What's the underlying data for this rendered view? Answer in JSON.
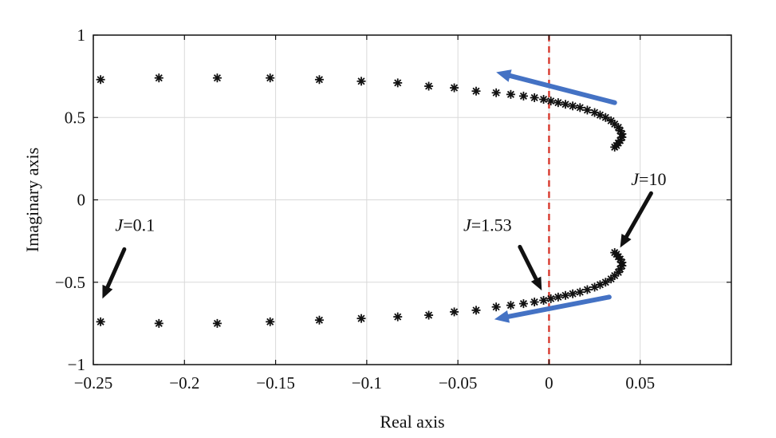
{
  "chart_data": {
    "type": "scatter",
    "title": "",
    "xlabel": "Real axis",
    "ylabel": "Imaginary axis",
    "xlim": [
      -0.25,
      0.1
    ],
    "ylim": [
      -1,
      1
    ],
    "x_ticks": [
      -0.25,
      -0.2,
      -0.15,
      -0.1,
      -0.05,
      0,
      0.05
    ],
    "x_tick_labels": [
      "−0.25",
      "−0.2",
      "−0.15",
      "−0.1",
      "−0.05",
      "0",
      "0.05"
    ],
    "y_ticks": [
      1,
      0.5,
      0,
      -0.5,
      -1
    ],
    "y_tick_labels": [
      "1",
      "0.5",
      "0",
      "−0.5",
      "−1"
    ],
    "grid": true,
    "marker": "*",
    "series": [
      {
        "values": [
          [
            -0.246,
            0.73
          ],
          [
            -0.214,
            0.74
          ],
          [
            -0.182,
            0.74
          ],
          [
            -0.153,
            0.74
          ],
          [
            -0.126,
            0.73
          ],
          [
            -0.103,
            0.72
          ],
          [
            -0.083,
            0.71
          ],
          [
            -0.066,
            0.69
          ],
          [
            -0.052,
            0.68
          ],
          [
            -0.04,
            0.66
          ],
          [
            -0.029,
            0.65
          ],
          [
            -0.021,
            0.64
          ],
          [
            -0.014,
            0.63
          ],
          [
            -0.008,
            0.62
          ],
          [
            -0.003,
            0.61
          ],
          [
            0.001,
            0.6
          ],
          [
            0.005,
            0.59
          ],
          [
            0.009,
            0.58
          ],
          [
            0.013,
            0.57
          ],
          [
            0.017,
            0.56
          ],
          [
            0.021,
            0.545
          ],
          [
            0.025,
            0.53
          ],
          [
            0.028,
            0.515
          ],
          [
            0.031,
            0.5
          ],
          [
            0.034,
            0.48
          ],
          [
            0.036,
            0.46
          ],
          [
            0.038,
            0.44
          ],
          [
            0.039,
            0.42
          ],
          [
            0.04,
            0.4
          ],
          [
            0.04,
            0.38
          ],
          [
            0.039,
            0.36
          ],
          [
            0.038,
            0.345
          ],
          [
            0.037,
            0.33
          ],
          [
            0.036,
            0.32
          ]
        ]
      },
      {
        "values": [
          [
            -0.246,
            -0.74
          ],
          [
            -0.214,
            -0.75
          ],
          [
            -0.182,
            -0.75
          ],
          [
            -0.153,
            -0.74
          ],
          [
            -0.126,
            -0.73
          ],
          [
            -0.103,
            -0.72
          ],
          [
            -0.083,
            -0.71
          ],
          [
            -0.066,
            -0.7
          ],
          [
            -0.052,
            -0.68
          ],
          [
            -0.04,
            -0.67
          ],
          [
            -0.029,
            -0.65
          ],
          [
            -0.021,
            -0.64
          ],
          [
            -0.014,
            -0.63
          ],
          [
            -0.008,
            -0.62
          ],
          [
            -0.003,
            -0.61
          ],
          [
            0.001,
            -0.6
          ],
          [
            0.005,
            -0.59
          ],
          [
            0.009,
            -0.58
          ],
          [
            0.013,
            -0.57
          ],
          [
            0.017,
            -0.56
          ],
          [
            0.021,
            -0.545
          ],
          [
            0.025,
            -0.53
          ],
          [
            0.028,
            -0.515
          ],
          [
            0.031,
            -0.5
          ],
          [
            0.034,
            -0.48
          ],
          [
            0.036,
            -0.46
          ],
          [
            0.038,
            -0.44
          ],
          [
            0.039,
            -0.42
          ],
          [
            0.04,
            -0.4
          ],
          [
            0.04,
            -0.38
          ],
          [
            0.039,
            -0.36
          ],
          [
            0.038,
            -0.345
          ],
          [
            0.037,
            -0.33
          ],
          [
            0.036,
            -0.32
          ]
        ]
      }
    ],
    "reference_line": {
      "x": 0,
      "style": "dashed",
      "color": "#d83a2e"
    },
    "direction_arrows": [
      {
        "from": [
          0.036,
          0.59
        ],
        "to": [
          -0.029,
          0.775
        ],
        "color": "#4472c4"
      },
      {
        "from": [
          0.033,
          -0.59
        ],
        "to": [
          -0.03,
          -0.725
        ],
        "color": "#4472c4"
      }
    ],
    "annotations": [
      {
        "var": "J",
        "value": "=0.1",
        "label_at": [
          -0.238,
          -0.19
        ],
        "from": [
          -0.233,
          -0.3
        ],
        "to": [
          -0.245,
          -0.6
        ]
      },
      {
        "var": "J",
        "value": "=1.53",
        "label_at": [
          -0.047,
          -0.19
        ],
        "from": [
          -0.016,
          -0.285
        ],
        "to": [
          -0.004,
          -0.55
        ]
      },
      {
        "var": "J",
        "value": "=10",
        "label_at": [
          0.045,
          0.09
        ],
        "from": [
          0.056,
          0.04
        ],
        "to": [
          0.039,
          -0.29
        ]
      }
    ],
    "colors": {
      "marker": "#111111",
      "grid": "#d9d9d9",
      "axis": "#111111",
      "arrow": "#4472c4",
      "annotation_arrow": "#111111",
      "reference": "#d83a2e"
    }
  }
}
